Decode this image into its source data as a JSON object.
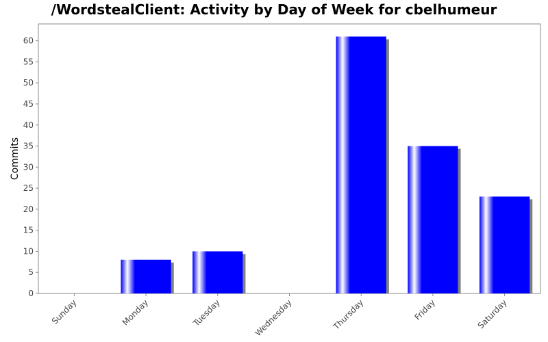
{
  "colors": {
    "bar": "#0000ff",
    "bar_shadow": "#808080",
    "plot_border": "#888888",
    "tick_text": "#444444"
  },
  "chart_data": {
    "type": "bar",
    "title": "/WordstealClient: Activity by Day of Week for cbelhumeur",
    "xlabel": "",
    "ylabel": "Commits",
    "categories": [
      "Sunday",
      "Monday",
      "Tuesday",
      "Wednesday",
      "Thursday",
      "Friday",
      "Saturday"
    ],
    "values": [
      0,
      8,
      10,
      0,
      61,
      35,
      23
    ],
    "ylim": [
      0,
      64
    ],
    "yticks": [
      0,
      5,
      10,
      15,
      20,
      25,
      30,
      35,
      40,
      45,
      50,
      55,
      60
    ],
    "grid": false,
    "legend": "none"
  }
}
